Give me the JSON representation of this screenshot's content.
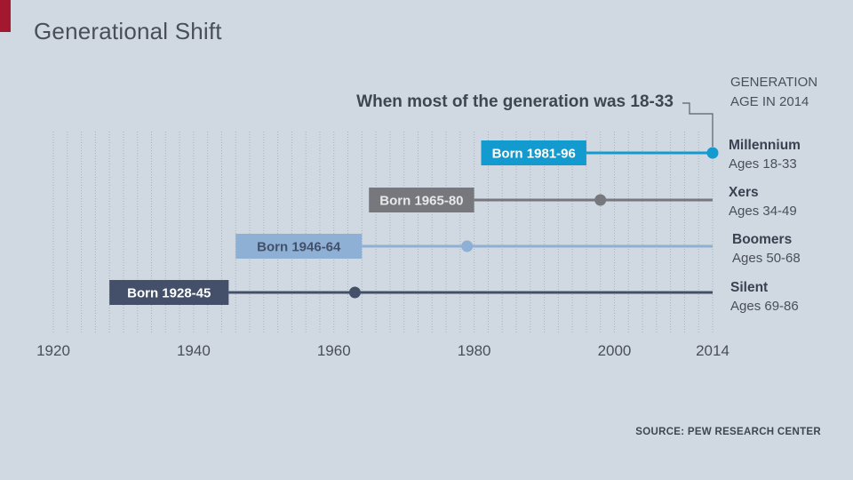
{
  "header": {
    "title": "Generational Shift",
    "subtitle": "When most of the generation was 18-33",
    "gen_header_line1": "GENERATION",
    "gen_header_line2": "AGE IN 2014"
  },
  "footer": {
    "source": "SOURCE: PEW RESEARCH CENTER"
  },
  "colors": {
    "millennium": "#139bcf",
    "xers": "#76787d",
    "boomers": "#8fb0d5",
    "silent": "#44506a",
    "accent": "#a3182e"
  },
  "chart_data": {
    "type": "timeline",
    "title": "Generational Shift",
    "subtitle": "When most of the generation was 18-33",
    "x_ticks": [
      "1920",
      "1940",
      "1960",
      "1980",
      "2000",
      "2014"
    ],
    "xlim": [
      1920,
      2014
    ],
    "series": [
      {
        "name": "Millennium",
        "ages": "Ages 18-33",
        "born_label": "Born 1981-96",
        "born_start": 1981,
        "born_end": 1996,
        "marker_year": 2014
      },
      {
        "name": "Xers",
        "ages": "Ages 34-49",
        "born_label": "Born 1965-80",
        "born_start": 1965,
        "born_end": 1980,
        "marker_year": 1998
      },
      {
        "name": "Boomers",
        "ages": "Ages 50-68",
        "born_label": "Born 1946-64",
        "born_start": 1946,
        "born_end": 1964,
        "marker_year": 1979
      },
      {
        "name": "Silent",
        "ages": "Ages 69-86",
        "born_label": "Born 1928-45",
        "born_start": 1928,
        "born_end": 1945,
        "marker_year": 1963
      }
    ]
  }
}
